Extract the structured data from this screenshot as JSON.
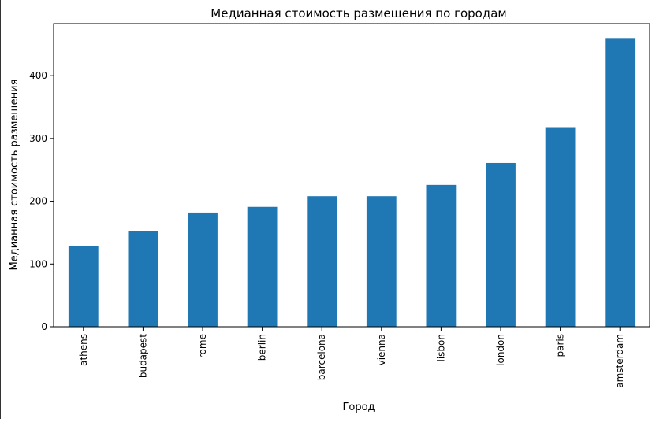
{
  "chart_data": {
    "type": "bar",
    "title": "Медианная стоимость размещения по городам",
    "xlabel": "Город",
    "ylabel": "Медианная стоимость размещения",
    "categories": [
      "athens",
      "budapest",
      "rome",
      "berlin",
      "barcelona",
      "vienna",
      "lisbon",
      "london",
      "paris",
      "amsterdam"
    ],
    "values": [
      128,
      153,
      182,
      191,
      208,
      208,
      226,
      261,
      318,
      460
    ],
    "ylim": [
      0,
      483
    ],
    "yticks": [
      0,
      100,
      200,
      300,
      400
    ],
    "grid": false,
    "legend": "none",
    "bar_color": "#1f77b4"
  }
}
